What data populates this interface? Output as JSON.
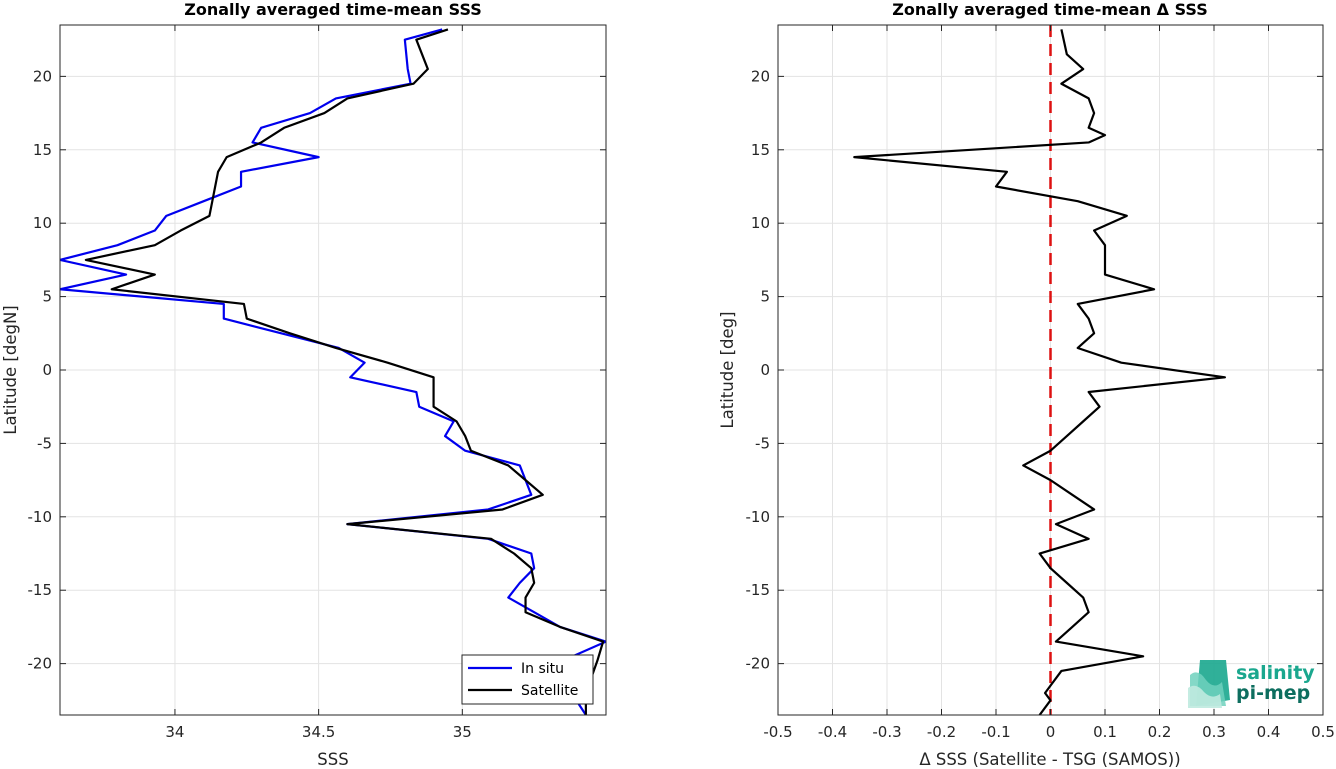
{
  "chart_data": [
    {
      "type": "line",
      "title": "Zonally averaged time-mean SSS",
      "xlabel": "SSS",
      "ylabel": "Latitude [degN]",
      "xlim": [
        33.6,
        35.5
      ],
      "ylim": [
        -23.5,
        23.5
      ],
      "xticks": [
        34,
        34.5,
        35
      ],
      "xtick_labels": [
        "34",
        "34.5",
        "35"
      ],
      "yticks": [
        -20,
        -15,
        -10,
        -5,
        0,
        5,
        10,
        15,
        20
      ],
      "ytick_labels": [
        "-20",
        "-15",
        "-10",
        "-5",
        "0",
        "5",
        "10",
        "15",
        "20"
      ],
      "grid": true,
      "legend_position": "bottom-right",
      "series": [
        {
          "name": "In situ",
          "color": "#0000ee",
          "points": [
            [
              34.93,
              23.2
            ],
            [
              34.8,
              22.5
            ],
            [
              34.81,
              20.5
            ],
            [
              34.82,
              19.5
            ],
            [
              34.56,
              18.5
            ],
            [
              34.47,
              17.5
            ],
            [
              34.3,
              16.5
            ],
            [
              34.27,
              15.5
            ],
            [
              34.5,
              14.5
            ],
            [
              34.23,
              13.5
            ],
            [
              34.23,
              12.5
            ],
            [
              34.1,
              11.5
            ],
            [
              33.97,
              10.5
            ],
            [
              33.93,
              9.5
            ],
            [
              33.8,
              8.5
            ],
            [
              33.6,
              7.5
            ],
            [
              33.83,
              6.5
            ],
            [
              33.6,
              5.5
            ],
            [
              34.17,
              4.5
            ],
            [
              34.17,
              3.5
            ],
            [
              34.37,
              2.5
            ],
            [
              34.57,
              1.5
            ],
            [
              34.66,
              0.5
            ],
            [
              34.61,
              -0.5
            ],
            [
              34.84,
              -1.5
            ],
            [
              34.85,
              -2.5
            ],
            [
              34.97,
              -3.5
            ],
            [
              34.94,
              -4.5
            ],
            [
              35.01,
              -5.5
            ],
            [
              35.2,
              -6.5
            ],
            [
              35.22,
              -7.5
            ],
            [
              35.24,
              -8.5
            ],
            [
              35.09,
              -9.5
            ],
            [
              34.6,
              -10.5
            ],
            [
              35.09,
              -11.5
            ],
            [
              35.24,
              -12.5
            ],
            [
              35.25,
              -13.5
            ],
            [
              35.2,
              -14.5
            ],
            [
              35.16,
              -15.5
            ],
            [
              35.25,
              -16.5
            ],
            [
              35.34,
              -17.5
            ],
            [
              35.5,
              -18.5
            ],
            [
              35.35,
              -19.8
            ],
            [
              35.38,
              -22
            ],
            [
              35.43,
              -23.5
            ]
          ]
        },
        {
          "name": "Satellite",
          "color": "#000000",
          "points": [
            [
              34.95,
              23.2
            ],
            [
              34.84,
              22.5
            ],
            [
              34.88,
              20.5
            ],
            [
              34.83,
              19.5
            ],
            [
              34.6,
              18.5
            ],
            [
              34.52,
              17.5
            ],
            [
              34.38,
              16.5
            ],
            [
              34.3,
              15.5
            ],
            [
              34.18,
              14.5
            ],
            [
              34.15,
              13.5
            ],
            [
              34.14,
              12.5
            ],
            [
              34.13,
              11.5
            ],
            [
              34.12,
              10.5
            ],
            [
              34.02,
              9.5
            ],
            [
              33.93,
              8.5
            ],
            [
              33.69,
              7.5
            ],
            [
              33.93,
              6.5
            ],
            [
              33.78,
              5.5
            ],
            [
              34.24,
              4.5
            ],
            [
              34.25,
              3.5
            ],
            [
              34.4,
              2.5
            ],
            [
              34.56,
              1.5
            ],
            [
              34.74,
              0.5
            ],
            [
              34.9,
              -0.5
            ],
            [
              34.9,
              -1.5
            ],
            [
              34.9,
              -2.5
            ],
            [
              34.98,
              -3.5
            ],
            [
              35.01,
              -4.5
            ],
            [
              35.03,
              -5.5
            ],
            [
              35.16,
              -6.5
            ],
            [
              35.22,
              -7.5
            ],
            [
              35.28,
              -8.5
            ],
            [
              35.14,
              -9.5
            ],
            [
              34.6,
              -10.5
            ],
            [
              35.1,
              -11.5
            ],
            [
              35.18,
              -12.5
            ],
            [
              35.24,
              -13.5
            ],
            [
              35.25,
              -14.5
            ],
            [
              35.22,
              -15.5
            ],
            [
              35.22,
              -16.5
            ],
            [
              35.34,
              -17.5
            ],
            [
              35.49,
              -18.5
            ],
            [
              35.47,
              -19.8
            ],
            [
              35.43,
              -22
            ],
            [
              35.43,
              -23.5
            ]
          ]
        }
      ]
    },
    {
      "type": "line",
      "title": "Zonally averaged time-mean Δ SSS",
      "xlabel": "Δ SSS (Satellite - TSG (SAMOS))",
      "ylabel": "Latitude [deg]",
      "xlim": [
        -0.5,
        0.5
      ],
      "ylim": [
        -23.5,
        23.5
      ],
      "xticks": [
        -0.5,
        -0.4,
        -0.3,
        -0.2,
        -0.1,
        0,
        0.1,
        0.2,
        0.3,
        0.4,
        0.5
      ],
      "xtick_labels": [
        "-0.5",
        "-0.4",
        "-0.3",
        "-0.2",
        "-0.1",
        "0",
        "0.1",
        "0.2",
        "0.3",
        "0.4",
        "0.5"
      ],
      "yticks": [
        -20,
        -15,
        -10,
        -5,
        0,
        5,
        10,
        15,
        20
      ],
      "ytick_labels": [
        "-20",
        "-15",
        "-10",
        "-5",
        "0",
        "5",
        "10",
        "15",
        "20"
      ],
      "grid": true,
      "reference_line": {
        "x": 0,
        "color": "#dd1111",
        "style": "dashed"
      },
      "series": [
        {
          "color": "#000000",
          "points": [
            [
              0.02,
              23.2
            ],
            [
              0.03,
              21.5
            ],
            [
              0.06,
              20.5
            ],
            [
              0.02,
              19.5
            ],
            [
              0.07,
              18.5
            ],
            [
              0.08,
              17.5
            ],
            [
              0.07,
              16.5
            ],
            [
              0.1,
              16.0
            ],
            [
              0.07,
              15.5
            ],
            [
              -0.36,
              14.5
            ],
            [
              -0.08,
              13.5
            ],
            [
              -0.1,
              12.5
            ],
            [
              0.05,
              11.5
            ],
            [
              0.14,
              10.5
            ],
            [
              0.08,
              9.5
            ],
            [
              0.1,
              8.5
            ],
            [
              0.1,
              7.5
            ],
            [
              0.1,
              6.5
            ],
            [
              0.19,
              5.5
            ],
            [
              0.05,
              4.5
            ],
            [
              0.07,
              3.5
            ],
            [
              0.08,
              2.5
            ],
            [
              0.05,
              1.5
            ],
            [
              0.13,
              0.5
            ],
            [
              0.32,
              -0.5
            ],
            [
              0.07,
              -1.5
            ],
            [
              0.09,
              -2.5
            ],
            [
              0.06,
              -3.5
            ],
            [
              0.03,
              -4.5
            ],
            [
              0.0,
              -5.5
            ],
            [
              -0.05,
              -6.5
            ],
            [
              0.0,
              -7.5
            ],
            [
              0.04,
              -8.5
            ],
            [
              0.08,
              -9.5
            ],
            [
              0.01,
              -10.5
            ],
            [
              0.07,
              -11.5
            ],
            [
              -0.02,
              -12.5
            ],
            [
              0.0,
              -13.5
            ],
            [
              0.03,
              -14.5
            ],
            [
              0.06,
              -15.5
            ],
            [
              0.07,
              -16.5
            ],
            [
              0.04,
              -17.5
            ],
            [
              0.01,
              -18.5
            ],
            [
              0.17,
              -19.5
            ],
            [
              0.02,
              -20.5
            ],
            [
              0.0,
              -21.5
            ],
            [
              -0.01,
              -22.0
            ],
            [
              0.0,
              -22.5
            ],
            [
              -0.02,
              -23.5
            ]
          ]
        }
      ]
    }
  ],
  "legend": {
    "entries": [
      "In situ",
      "Satellite"
    ]
  },
  "logo": {
    "line1": "salinity",
    "line2": "pi-mep",
    "color1": "#1aa78e",
    "color2": "#0d6e5f"
  }
}
